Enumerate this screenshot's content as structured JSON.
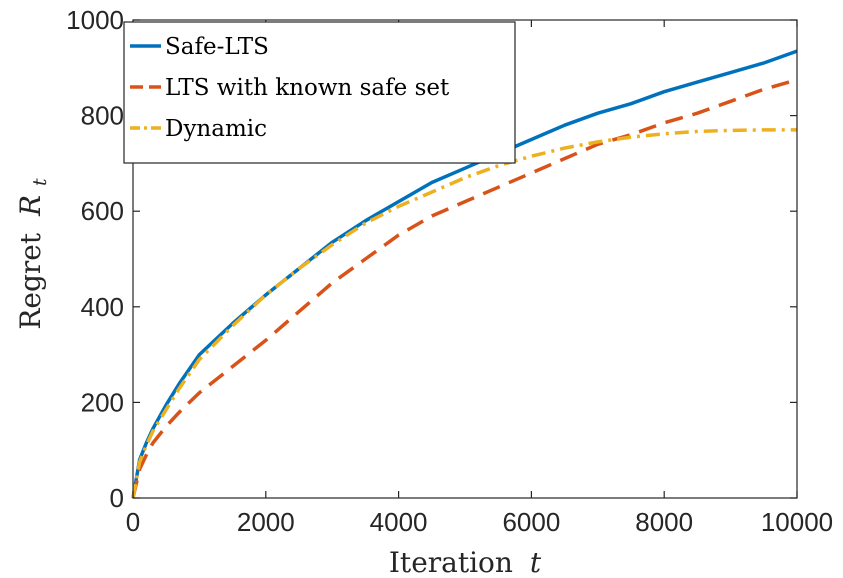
{
  "chart_data": {
    "type": "line",
    "xlabel": "Iteration",
    "xlabel_symbol": "t",
    "ylabel": "Regret",
    "ylabel_symbol": "R",
    "ylabel_subscript": "t",
    "xlim": [
      0,
      10000
    ],
    "ylim": [
      0,
      1000
    ],
    "xticks": [
      0,
      2000,
      4000,
      6000,
      8000,
      10000
    ],
    "yticks": [
      0,
      200,
      400,
      600,
      800,
      1000
    ],
    "xtick_labels": [
      "0",
      "2000",
      "4000",
      "6000",
      "8000",
      "10000"
    ],
    "ytick_labels": [
      "0",
      "200",
      "400",
      "600",
      "800",
      "1000"
    ],
    "grid": false,
    "legend_position": "top-left",
    "series": [
      {
        "name": "Safe-LTS",
        "color": "#0072BD",
        "style": "solid",
        "x": [
          0,
          100,
          200,
          300,
          500,
          700,
          1000,
          1500,
          2000,
          2500,
          3000,
          3500,
          4000,
          4500,
          5000,
          5500,
          6000,
          6500,
          7000,
          7500,
          8000,
          8500,
          9000,
          9500,
          10000
        ],
        "y": [
          0,
          80,
          115,
          145,
          195,
          240,
          300,
          365,
          425,
          480,
          535,
          580,
          620,
          660,
          690,
          720,
          750,
          780,
          805,
          825,
          850,
          870,
          890,
          910,
          935
        ]
      },
      {
        "name": "LTS with known safe set",
        "color": "#D95319",
        "style": "dashed",
        "x": [
          0,
          100,
          200,
          300,
          500,
          700,
          1000,
          1500,
          2000,
          2500,
          3000,
          3500,
          4000,
          4500,
          5000,
          5500,
          6000,
          6500,
          7000,
          7500,
          8000,
          8500,
          9000,
          9500,
          10000
        ],
        "y": [
          0,
          60,
          90,
          115,
          150,
          180,
          220,
          275,
          330,
          390,
          450,
          500,
          550,
          590,
          620,
          650,
          680,
          710,
          740,
          760,
          785,
          805,
          830,
          855,
          875
        ]
      },
      {
        "name": "Dynamic",
        "color": "#EDB120",
        "style": "dash-dot",
        "x": [
          0,
          100,
          200,
          300,
          500,
          700,
          1000,
          1500,
          2000,
          2500,
          3000,
          3500,
          4000,
          4500,
          5000,
          5500,
          6000,
          6500,
          7000,
          7500,
          8000,
          8500,
          9000,
          9500,
          10000
        ],
        "y": [
          0,
          75,
          110,
          140,
          185,
          230,
          290,
          360,
          425,
          480,
          530,
          575,
          610,
          640,
          670,
          695,
          715,
          732,
          745,
          755,
          762,
          767,
          769,
          770,
          770
        ]
      }
    ]
  }
}
